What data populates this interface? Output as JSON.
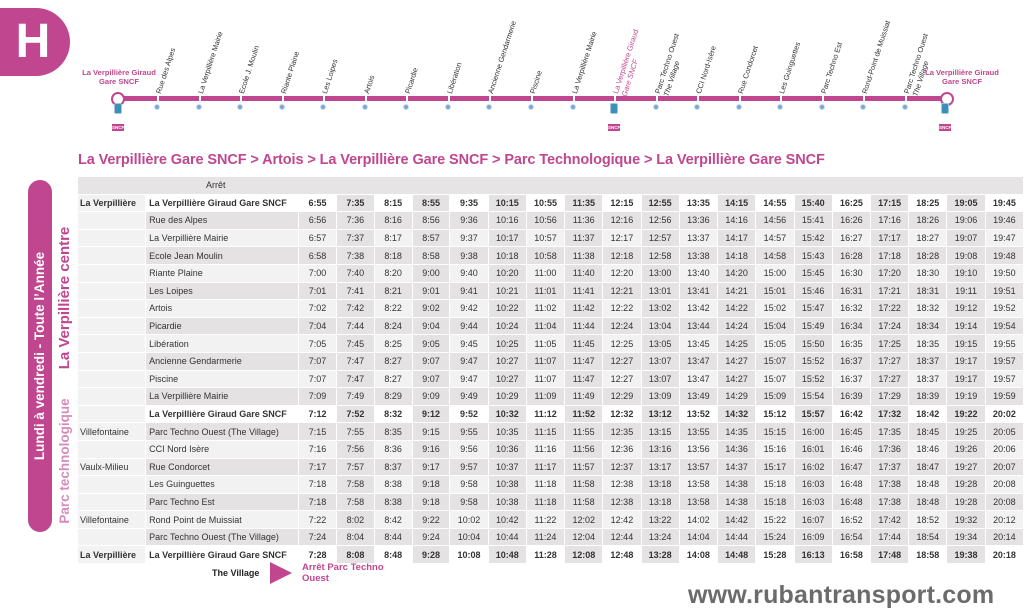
{
  "line_badge": "H",
  "route": {
    "start_label": "La Verpillière Giraud Gare SNCF",
    "end_label": "La Verpillière Giraud Gare SNCF",
    "stops": [
      {
        "name": "Rue des Alpes",
        "sub": "",
        "pink": false
      },
      {
        "name": "La Verpillière Mairie",
        "sub": "",
        "pink": false
      },
      {
        "name": "Ecole J. Moulin",
        "sub": "",
        "pink": false
      },
      {
        "name": "Riante Plaine",
        "sub": "",
        "pink": false
      },
      {
        "name": "Les Loipes",
        "sub": "",
        "pink": false
      },
      {
        "name": "Artois",
        "sub": "",
        "pink": false
      },
      {
        "name": "Picardie",
        "sub": "",
        "pink": false
      },
      {
        "name": "Libération",
        "sub": "",
        "pink": false
      },
      {
        "name": "Ancienne Gendarmerie",
        "sub": "",
        "pink": false
      },
      {
        "name": "Piscine",
        "sub": "",
        "pink": false
      },
      {
        "name": "La Verpillière Mairie",
        "sub": "",
        "pink": false
      },
      {
        "name": "La Verpillière Giraud",
        "sub": "Gare SNCF",
        "pink": true
      },
      {
        "name": "Parc Techno Ouest",
        "sub": "The Village",
        "pink": false
      },
      {
        "name": "CCI Nord-Isère",
        "sub": "",
        "pink": false
      },
      {
        "name": "Rue Condorcet",
        "sub": "",
        "pink": false
      },
      {
        "name": "Les Guinguettes",
        "sub": "",
        "pink": false
      },
      {
        "name": "Parc Techno Est",
        "sub": "",
        "pink": false
      },
      {
        "name": "Rond-Point de Muissiat",
        "sub": "",
        "pink": false
      },
      {
        "name": "Parc Techno Ouest",
        "sub": "The Village",
        "pink": false
      }
    ],
    "sncf_label": "SNCF"
  },
  "direction_title": "La Verpillière Gare SNCF > Artois > La Verpillière Gare SNCF > Parc Technologique > La Verpillière Gare SNCF",
  "side_labels": {
    "days": "Lundi à vendredi - Toute l’Année",
    "centre": "La Verpillière centre",
    "techno": "Parc technologique"
  },
  "table": {
    "header": "Arrêt",
    "rows": [
      {
        "commune": "La Verpillière",
        "stop": "La Verpillière Giraud Gare SNCF",
        "gare": true,
        "times": [
          "6:55",
          "7:35",
          "8:15",
          "8:55",
          "9:35",
          "10:15",
          "10:55",
          "11:35",
          "12:15",
          "12:55",
          "13:35",
          "14:15",
          "14:55",
          "15:40",
          "16:25",
          "17:15",
          "18:25",
          "19:05",
          "19:45"
        ]
      },
      {
        "commune": "",
        "stop": "Rue des Alpes",
        "gare": false,
        "times": [
          "6:56",
          "7:36",
          "8:16",
          "8:56",
          "9:36",
          "10:16",
          "10:56",
          "11:36",
          "12:16",
          "12:56",
          "13:36",
          "14:16",
          "14:56",
          "15:41",
          "16:26",
          "17:16",
          "18:26",
          "19:06",
          "19:46"
        ]
      },
      {
        "commune": "",
        "stop": "La Verpillière Mairie",
        "gare": false,
        "times": [
          "6:57",
          "7:37",
          "8:17",
          "8:57",
          "9:37",
          "10:17",
          "10:57",
          "11:37",
          "12:17",
          "12:57",
          "13:37",
          "14:17",
          "14:57",
          "15:42",
          "16:27",
          "17:17",
          "18:27",
          "19:07",
          "19:47"
        ]
      },
      {
        "commune": "",
        "stop": "Ecole Jean Moulin",
        "gare": false,
        "times": [
          "6:58",
          "7:38",
          "8:18",
          "8:58",
          "9:38",
          "10:18",
          "10:58",
          "11:38",
          "12:18",
          "12:58",
          "13:38",
          "14:18",
          "14:58",
          "15:43",
          "16:28",
          "17:18",
          "18:28",
          "19:08",
          "19:48"
        ]
      },
      {
        "commune": "",
        "stop": "Riante Plaine",
        "gare": false,
        "times": [
          "7:00",
          "7:40",
          "8:20",
          "9:00",
          "9:40",
          "10:20",
          "11:00",
          "11:40",
          "12:20",
          "13:00",
          "13:40",
          "14:20",
          "15:00",
          "15:45",
          "16:30",
          "17:20",
          "18:30",
          "19:10",
          "19:50"
        ]
      },
      {
        "commune": "",
        "stop": "Les Loipes",
        "gare": false,
        "times": [
          "7:01",
          "7:41",
          "8:21",
          "9:01",
          "9:41",
          "10:21",
          "11:01",
          "11:41",
          "12:21",
          "13:01",
          "13:41",
          "14:21",
          "15:01",
          "15:46",
          "16:31",
          "17:21",
          "18:31",
          "19:11",
          "19:51"
        ]
      },
      {
        "commune": "",
        "stop": "Artois",
        "gare": false,
        "times": [
          "7:02",
          "7:42",
          "8:22",
          "9:02",
          "9:42",
          "10:22",
          "11:02",
          "11:42",
          "12:22",
          "13:02",
          "13:42",
          "14:22",
          "15:02",
          "15:47",
          "16:32",
          "17:22",
          "18:32",
          "19:12",
          "19:52"
        ]
      },
      {
        "commune": "",
        "stop": "Picardie",
        "gare": false,
        "times": [
          "7:04",
          "7:44",
          "8:24",
          "9:04",
          "9:44",
          "10:24",
          "11:04",
          "11:44",
          "12:24",
          "13:04",
          "13:44",
          "14:24",
          "15:04",
          "15:49",
          "16:34",
          "17:24",
          "18:34",
          "19:14",
          "19:54"
        ]
      },
      {
        "commune": "",
        "stop": "Libération",
        "gare": false,
        "times": [
          "7:05",
          "7:45",
          "8:25",
          "9:05",
          "9:45",
          "10:25",
          "11:05",
          "11:45",
          "12:25",
          "13:05",
          "13:45",
          "14:25",
          "15:05",
          "15:50",
          "16:35",
          "17:25",
          "18:35",
          "19:15",
          "19:55"
        ]
      },
      {
        "commune": "",
        "stop": "Ancienne Gendarmerie",
        "gare": false,
        "times": [
          "7:07",
          "7:47",
          "8:27",
          "9:07",
          "9:47",
          "10:27",
          "11:07",
          "11:47",
          "12:27",
          "13:07",
          "13:47",
          "14:27",
          "15:07",
          "15:52",
          "16:37",
          "17:27",
          "18:37",
          "19:17",
          "19:57"
        ]
      },
      {
        "commune": "",
        "stop": "Piscine",
        "gare": false,
        "times": [
          "7:07",
          "7:47",
          "8:27",
          "9:07",
          "9:47",
          "10:27",
          "11:07",
          "11:47",
          "12:27",
          "13:07",
          "13:47",
          "14:27",
          "15:07",
          "15:52",
          "16:37",
          "17:27",
          "18:37",
          "19:17",
          "19:57"
        ]
      },
      {
        "commune": "",
        "stop": "La Verpillière Mairie",
        "gare": false,
        "times": [
          "7:09",
          "7:49",
          "8:29",
          "9:09",
          "9:49",
          "10:29",
          "11:09",
          "11:49",
          "12:29",
          "13:09",
          "13:49",
          "14:29",
          "15:09",
          "15:54",
          "16:39",
          "17:29",
          "18:39",
          "19:19",
          "19:59"
        ]
      },
      {
        "commune": "",
        "stop": "La Verpillière Giraud Gare SNCF",
        "gare": true,
        "times": [
          "7:12",
          "7:52",
          "8:32",
          "9:12",
          "9:52",
          "10:32",
          "11:12",
          "11:52",
          "12:32",
          "13:12",
          "13:52",
          "14:32",
          "15:12",
          "15:57",
          "16:42",
          "17:32",
          "18:42",
          "19:22",
          "20:02"
        ]
      },
      {
        "commune": "Villefontaine",
        "stop": "Parc Techno Ouest (The Village)",
        "gare": false,
        "times": [
          "7:15",
          "7:55",
          "8:35",
          "9:15",
          "9:55",
          "10:35",
          "11:15",
          "11:55",
          "12:35",
          "13:15",
          "13:55",
          "14:35",
          "15:15",
          "16:00",
          "16:45",
          "17:35",
          "18:45",
          "19:25",
          "20:05"
        ]
      },
      {
        "commune": "",
        "stop": "CCI Nord Isère",
        "gare": false,
        "times": [
          "7:16",
          "7:56",
          "8:36",
          "9:16",
          "9:56",
          "10:36",
          "11:16",
          "11:56",
          "12:36",
          "13:16",
          "13:56",
          "14:36",
          "15:16",
          "16:01",
          "16:46",
          "17:36",
          "18:46",
          "19:26",
          "20:06"
        ]
      },
      {
        "commune": "Vaulx-Milieu",
        "stop": "Rue Condorcet",
        "gare": false,
        "times": [
          "7:17",
          "7:57",
          "8:37",
          "9:17",
          "9:57",
          "10:37",
          "11:17",
          "11:57",
          "12:37",
          "13:17",
          "13:57",
          "14:37",
          "15:17",
          "16:02",
          "16:47",
          "17:37",
          "18:47",
          "19:27",
          "20:07"
        ]
      },
      {
        "commune": "",
        "stop": "Les Guinguettes",
        "gare": false,
        "times": [
          "7:18",
          "7:58",
          "8:38",
          "9:18",
          "9:58",
          "10:38",
          "11:18",
          "11:58",
          "12:38",
          "13:18",
          "13:58",
          "14:38",
          "15:18",
          "16:03",
          "16:48",
          "17:38",
          "18:48",
          "19:28",
          "20:08"
        ]
      },
      {
        "commune": "",
        "stop": "Parc Techno Est",
        "gare": false,
        "times": [
          "7:18",
          "7:58",
          "8:38",
          "9:18",
          "9:58",
          "10:38",
          "11:18",
          "11:58",
          "12:38",
          "13:18",
          "13:58",
          "14:38",
          "15:18",
          "16:03",
          "16:48",
          "17:38",
          "18:48",
          "19:28",
          "20:08"
        ]
      },
      {
        "commune": "Villefontaine",
        "stop": "Rond Point de Muissiat",
        "gare": false,
        "times": [
          "7:22",
          "8:02",
          "8:42",
          "9:22",
          "10:02",
          "10:42",
          "11:22",
          "12:02",
          "12:42",
          "13:22",
          "14:02",
          "14:42",
          "15:22",
          "16:07",
          "16:52",
          "17:42",
          "18:52",
          "19:32",
          "20:12"
        ]
      },
      {
        "commune": "",
        "stop": "Parc Techno Ouest (The Village)",
        "gare": false,
        "times": [
          "7:24",
          "8:04",
          "8:44",
          "9:24",
          "10:04",
          "10:44",
          "11:24",
          "12:04",
          "12:44",
          "13:24",
          "14:04",
          "14:44",
          "15:24",
          "16:09",
          "16:54",
          "17:44",
          "18:54",
          "19:34",
          "20:14"
        ]
      },
      {
        "commune": "La Verpillière",
        "stop": "La Verpillière Giraud Gare SNCF",
        "gare": true,
        "times": [
          "7:28",
          "8:08",
          "8:48",
          "9:28",
          "10:08",
          "10:48",
          "11:28",
          "12:08",
          "12:48",
          "13:28",
          "14:08",
          "14:48",
          "15:28",
          "16:13",
          "16:58",
          "17:48",
          "18:58",
          "19:38",
          "20:18"
        ]
      }
    ]
  },
  "legend": {
    "village": "The Village",
    "arret": "Arrêt Parc Techno Ouest"
  },
  "website": "www.rubantransport.com",
  "colors": {
    "accent": "#c0478f",
    "row_light": "#f3f2f2",
    "row_dark": "#e4e2e2"
  }
}
